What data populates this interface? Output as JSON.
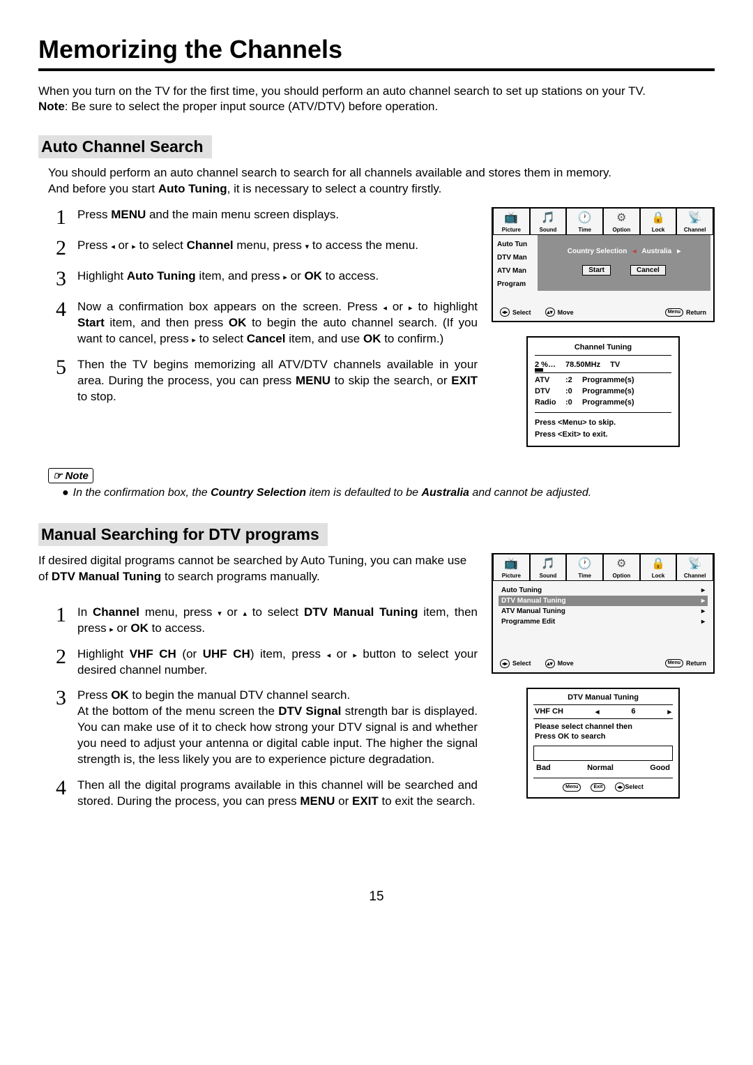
{
  "page_title": "Memorizing the Channels",
  "page_number": "15",
  "intro_line1": "When you turn on the TV for the first time, you should perform an auto channel search to set up stations on your TV.",
  "intro_note_label": "Note",
  "intro_note_text": ": Be sure to select the proper input source (ATV/DTV) before operation.",
  "section1": {
    "title": "Auto Channel Search",
    "intro1": "You should perform an auto channel search to search for all channels available and stores them in memory.",
    "intro2_pre": "And before you start ",
    "intro2_bold": "Auto Tuning",
    "intro2_post": ", it is necessary to select a country firstly.",
    "steps": [
      {
        "n": "1",
        "html": "Press <b>MENU</b> and the main menu screen displays."
      },
      {
        "n": "2",
        "html": "Press <span class='arrow'>◂</span> or <span class='arrow'>▸</span> to select <b>Channel</b> menu,  press <span class='arrow'>▾</span> to access the menu."
      },
      {
        "n": "3",
        "html": "Highlight <b>Auto Tuning</b> item, and press  <span class='arrow'>▸</span> or <b>OK</b> to access."
      },
      {
        "n": "4",
        "html": "Now a confirmation box appears on the screen. Press <span class='arrow'>◂</span> or <span class='arrow'>▸</span> to highlight <b>Start</b> item, and then press <b>OK</b> to begin the auto channel search. (If you want to cancel, press  <span class='arrow'>▸</span> to select <b>Cancel</b> item, and use <b>OK</b>  to confirm.)"
      },
      {
        "n": "5",
        "html": "Then the TV begins memorizing all ATV/DTV channels available in your area. During the process, you can press <b>MENU</b> to skip the search, or <b>EXIT</b> to stop."
      }
    ],
    "note_label": "Note",
    "note_bullet": "●",
    "note_html": "In the confirmation box, the <b>Country Selection</b> item is defaulted to be <b>Australia</b> and cannot be adjusted."
  },
  "section2": {
    "title": "Manual Searching for DTV programs",
    "intro_html": "If desired digital programs cannot be searched by Auto Tuning, you can make use of <b>DTV Manual Tuning</b> to search programs manually.",
    "steps": [
      {
        "n": "1",
        "html": "In <b>Channel</b> menu,  press <span class='arrow'>▾</span> or <span class='arrow'>▴</span>  to select <b>DTV Manual Tuning</b> item, then press <span class='arrow'>▸</span> or <b>OK</b> to access."
      },
      {
        "n": "2",
        "html": "Highlight <b>VHF CH</b> (or <b>UHF CH</b>) item, press <span class='arrow'>◂</span> or <span class='arrow'>▸</span> button to select your desired channel number."
      },
      {
        "n": "3",
        "html": "Press <b>OK</b> to begin the manual DTV  channel search.<br>At the bottom of the menu screen the <b>DTV Signal</b> strength bar is displayed. You can make use of it to check how strong your DTV signal is and whether you need to adjust your antenna or digital cable input. The higher the signal strength is, the less likely you are to experience picture degradation.",
        "gap": true
      },
      {
        "n": "4",
        "html": "Then all the digital programs available in this channel will be searched and stored. During the process, you can press <b>MENU</b> or <b>EXIT</b> to exit the search."
      }
    ]
  },
  "osd": {
    "tabs": [
      {
        "icon": "📺",
        "label": "Picture"
      },
      {
        "icon": "🎵",
        "label": "Sound"
      },
      {
        "icon": "🕐",
        "label": "Time"
      },
      {
        "icon": "⚙",
        "label": "Option"
      },
      {
        "icon": "🔒",
        "label": "Lock"
      },
      {
        "icon": "📡",
        "label": "Channel"
      }
    ],
    "osd1_items": [
      "Auto Tun",
      "DTV Man",
      "ATV Man",
      "Program"
    ],
    "osd1_popup": {
      "cs_label": "Country Selection",
      "cs_value": "Australia",
      "start": "Start",
      "cancel": "Cancel"
    },
    "footer": {
      "select": "Select",
      "move": "Move",
      "return": "Return",
      "menu": "Menu"
    },
    "tuning": {
      "title": "Channel  Tuning",
      "pct": "2  %…",
      "freq": "78.50MHz",
      "tv": "TV",
      "rows": [
        {
          "l": "ATV",
          "v": ":2",
          "r": "Programme(s)"
        },
        {
          "l": "DTV",
          "v": ":0",
          "r": "Programme(s)"
        },
        {
          "l": "Radio",
          "v": ":0",
          "r": "Programme(s)"
        }
      ],
      "msg1": "Press <Menu> to skip.",
      "msg2": "Press <Exit> to exit."
    },
    "osd2_items": [
      {
        "label": "Auto Tuning",
        "sel": false
      },
      {
        "label": "DTV Manual Tuning",
        "sel": true
      },
      {
        "label": "ATV Manual Tuning",
        "sel": false
      },
      {
        "label": "Programme Edit",
        "sel": false
      }
    ],
    "dtvm": {
      "title": "DTV Manual Tuning",
      "ch_label": "VHF  CH",
      "ch_value": "6",
      "msg1": "Please select channel then",
      "msg2": "Press OK to search",
      "bad": "Bad",
      "normal": "Normal",
      "good": "Good",
      "menu": "Menu",
      "exit": "Exit",
      "select": "Select"
    }
  }
}
